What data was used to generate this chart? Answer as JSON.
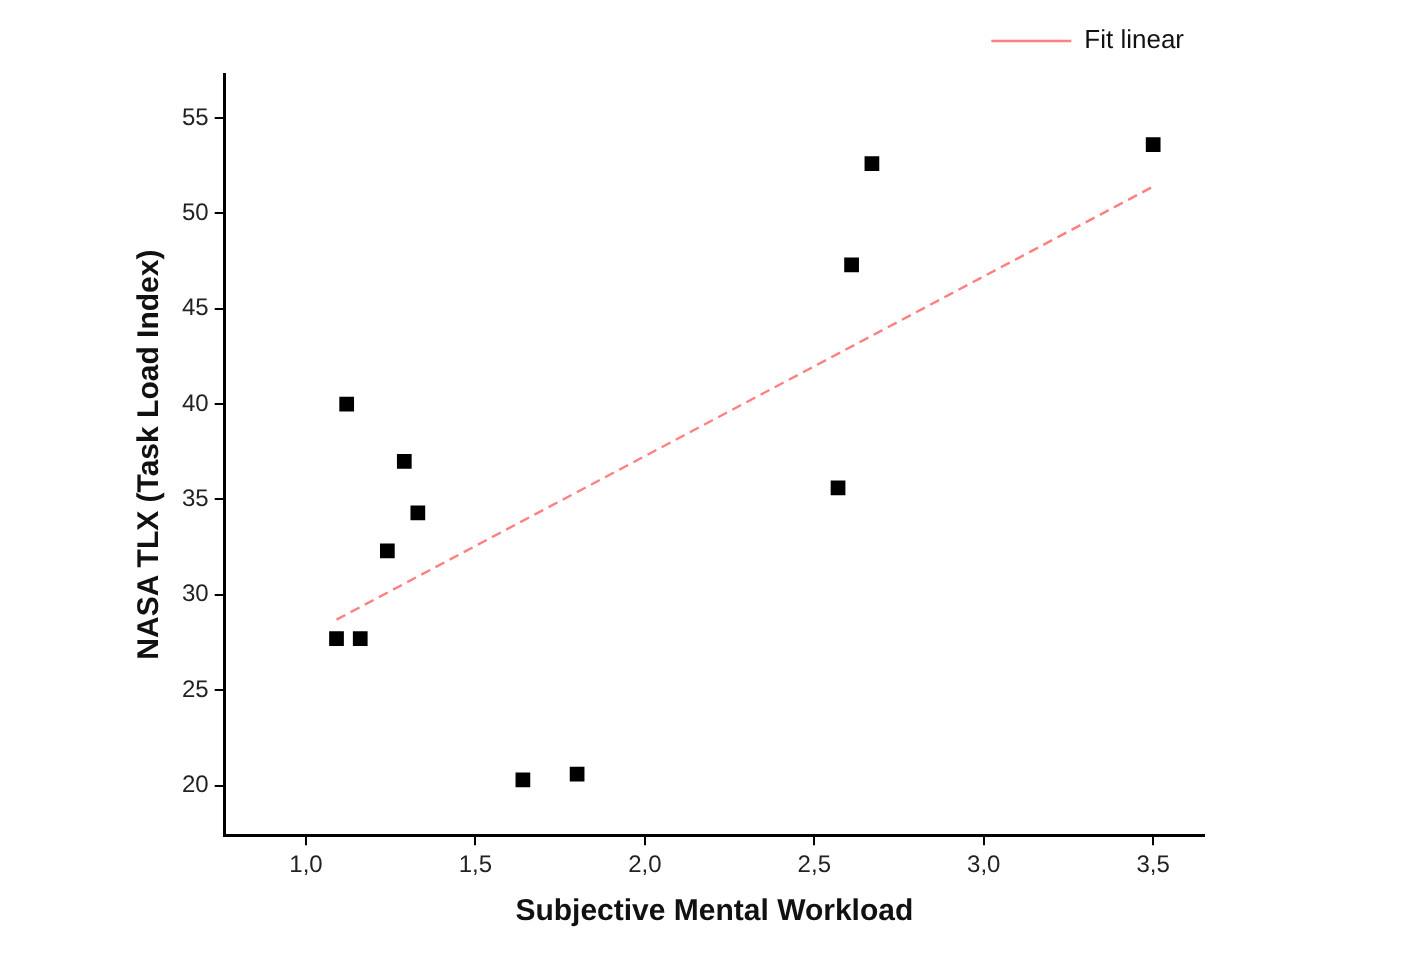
{
  "chart_data": {
    "type": "scatter",
    "xlabel": "Subjective Mental Workload",
    "ylabel": "NASA TLX (Task Load Index)",
    "xlim": [
      0.76,
      3.65
    ],
    "xticks": [
      {
        "value": 1,
        "label": "1,0"
      },
      {
        "value": 1.5,
        "label": "1,5"
      },
      {
        "value": 2,
        "label": "2,0"
      },
      {
        "value": 2.5,
        "label": "2,5"
      },
      {
        "value": 3,
        "label": "3,0"
      },
      {
        "value": 3.5,
        "label": "3,5"
      }
    ],
    "ylim": [
      17.4,
      57.3
    ],
    "yticks": [
      20,
      25,
      30,
      35,
      40,
      45,
      50,
      55
    ],
    "grid": false,
    "legend": "top right",
    "series": [
      {
        "marker": "square",
        "color": "#000000",
        "x": [
          1.09,
          1.16,
          1.12,
          1.29,
          1.24,
          1.33,
          1.64,
          1.8,
          2.67,
          2.61,
          2.57,
          3.5
        ],
        "values": [
          27.7,
          27.7,
          40.0,
          37.0,
          32.3,
          34.3,
          20.3,
          20.6,
          52.6,
          47.3,
          35.6,
          53.6
        ]
      },
      {
        "type": "line",
        "name": "Fit linear",
        "color": "#ff8080",
        "line_style": "dashed",
        "marker": "none",
        "x": [
          1.09,
          3.5
        ],
        "values": [
          28.7,
          51.4
        ]
      }
    ]
  }
}
